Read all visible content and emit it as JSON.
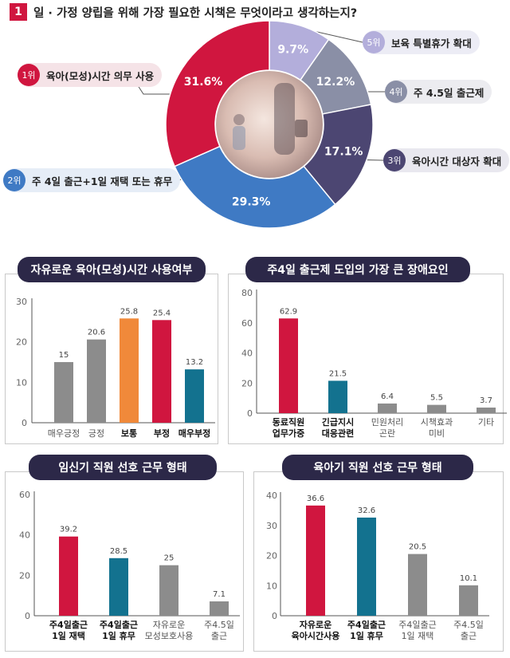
{
  "question": {
    "number": "1",
    "text": "일 · 가정 양립을 위해 가장 필요한 시책은 무엇이라고 생각하는지?"
  },
  "donut": {
    "type": "pie",
    "slices": [
      {
        "rank": "5위",
        "label": "보육 특별휴가 확대",
        "value": 9.7,
        "pct_text": "9.7%",
        "color": "#b3aedb"
      },
      {
        "rank": "4위",
        "label": "주 4.5일 출근제",
        "value": 12.2,
        "pct_text": "12.2%",
        "color": "#8a8fa6"
      },
      {
        "rank": "3위",
        "label": "육아시간 대상자 확대",
        "value": 17.1,
        "pct_text": "17.1%",
        "color": "#4c4672"
      },
      {
        "rank": "2위",
        "label": "주 4일 출근+1일 재택 또는 휴무",
        "value": 29.3,
        "pct_text": "29.3%",
        "color": "#3f7ac4"
      },
      {
        "rank": "1위",
        "label": "육아(모성)시간 의무 사용",
        "value": 31.6,
        "pct_text": "31.6%",
        "color": "#d0163f"
      }
    ]
  },
  "chart_data": [
    {
      "type": "bar",
      "title": "자유로운 육아(모성)시간 사용여부",
      "categories": [
        "매우긍정",
        "긍정",
        "보통",
        "부정",
        "매우부정"
      ],
      "values": [
        15,
        20.6,
        25.8,
        25.4,
        13.2
      ],
      "value_labels": [
        "15",
        "20.6",
        "25.8",
        "25.4",
        "13.2"
      ],
      "colors": [
        "#8c8c8c",
        "#8c8c8c",
        "#f0893a",
        "#d0163f",
        "#13728f"
      ],
      "bold": [
        false,
        false,
        true,
        true,
        true
      ],
      "yticks": [
        "0",
        "10",
        "20",
        "30"
      ],
      "ylim": [
        0,
        30
      ]
    },
    {
      "type": "bar",
      "title": "주4일 출근제 도입의 가장 큰 장애요인",
      "categories": [
        [
          "동료직원",
          "업무가중"
        ],
        [
          "긴급지시",
          "대응관련"
        ],
        [
          "민원처리",
          "곤란"
        ],
        [
          "시책효과",
          "미비"
        ],
        [
          "기타"
        ]
      ],
      "values": [
        62.9,
        21.5,
        6.4,
        5.5,
        3.7
      ],
      "value_labels": [
        "62.9",
        "21.5",
        "6.4",
        "5.5",
        "3.7"
      ],
      "colors": [
        "#d0163f",
        "#13728f",
        "#8c8c8c",
        "#8c8c8c",
        "#8c8c8c"
      ],
      "bold": [
        true,
        true,
        false,
        false,
        false
      ],
      "yticks": [
        "0",
        "20",
        "40",
        "60",
        "80"
      ],
      "ylim": [
        0,
        80
      ]
    },
    {
      "type": "bar",
      "title": "임신기 직원 선호 근무 형태",
      "categories": [
        [
          "주4일출근",
          "1일 재택"
        ],
        [
          "주4일출근",
          "1일 휴무"
        ],
        [
          "자유로운",
          "모성보호사용"
        ],
        [
          "주4.5일",
          "출근"
        ]
      ],
      "values": [
        39.2,
        28.5,
        25,
        7.1
      ],
      "value_labels": [
        "39.2",
        "28.5",
        "25",
        "7.1"
      ],
      "colors": [
        "#d0163f",
        "#13728f",
        "#8c8c8c",
        "#8c8c8c"
      ],
      "bold": [
        true,
        true,
        false,
        false
      ],
      "yticks": [
        "0",
        "20",
        "40",
        "60"
      ],
      "ylim": [
        0,
        60
      ]
    },
    {
      "type": "bar",
      "title": "육아기 직원 선호 근무 형태",
      "categories": [
        [
          "자유로운",
          "육아시간사용"
        ],
        [
          "주4일출근",
          "1일 휴무"
        ],
        [
          "주4일출근",
          "1일 재택"
        ],
        [
          "주4.5일",
          "출근"
        ]
      ],
      "values": [
        36.6,
        32.6,
        20.5,
        10.1
      ],
      "value_labels": [
        "36.6",
        "32.6",
        "20.5",
        "10.1"
      ],
      "colors": [
        "#d0163f",
        "#13728f",
        "#8c8c8c",
        "#8c8c8c"
      ],
      "bold": [
        true,
        true,
        false,
        false
      ],
      "yticks": [
        "0",
        "10",
        "20",
        "30",
        "40"
      ],
      "ylim": [
        0,
        40
      ]
    }
  ]
}
